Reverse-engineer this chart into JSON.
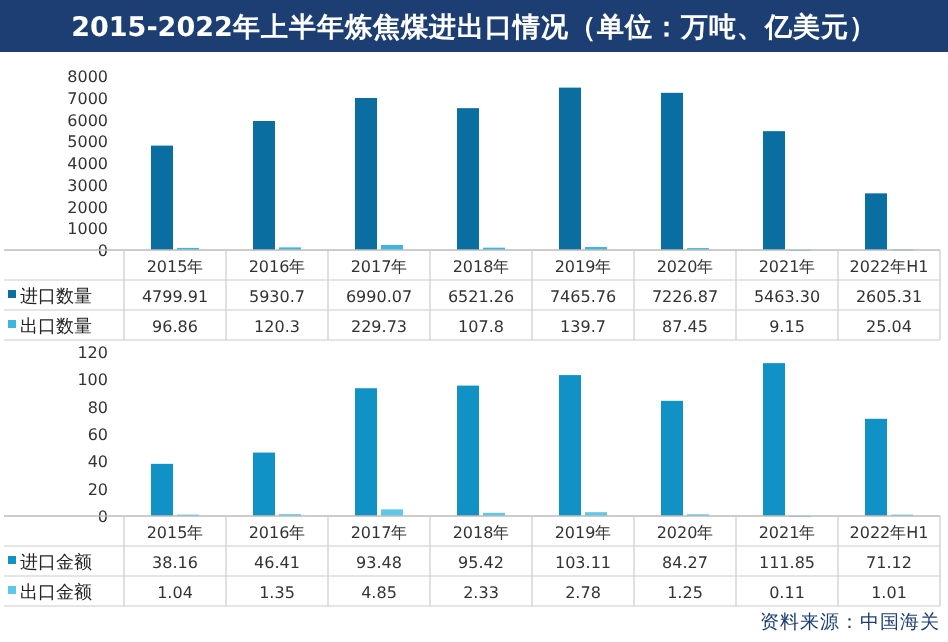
{
  "chart_data": [
    {
      "type": "bar",
      "title": "2015-2022年上半年炼焦煤进出口情况（单位：万吨、亿美元）",
      "categories": [
        "2015年",
        "2016年",
        "2017年",
        "2018年",
        "2019年",
        "2020年",
        "2021年",
        "2022年H1"
      ],
      "series": [
        {
          "name": "进口数量",
          "color": "#0a6fa0",
          "values": [
            4799.91,
            5930.7,
            6990.07,
            6521.26,
            7465.76,
            7226.87,
            5463.3,
            2605.31
          ],
          "value_labels": [
            "4799.91",
            "5930.7",
            "6990.07",
            "6521.26",
            "7465.76",
            "7226.87",
            "5463.30",
            "2605.31"
          ]
        },
        {
          "name": "出口数量",
          "color": "#3cb6e0",
          "values": [
            96.86,
            120.3,
            229.73,
            107.8,
            139.7,
            87.45,
            9.15,
            25.04
          ],
          "value_labels": [
            "96.86",
            "120.3",
            "229.73",
            "107.8",
            "139.7",
            "87.45",
            "9.15",
            "25.04"
          ]
        }
      ],
      "ylim": [
        0,
        8000
      ],
      "yticks": [
        0,
        1000,
        2000,
        3000,
        4000,
        5000,
        6000,
        7000,
        8000
      ],
      "legend": "bottom"
    },
    {
      "type": "bar",
      "categories": [
        "2015年",
        "2016年",
        "2017年",
        "2018年",
        "2019年",
        "2020年",
        "2021年",
        "2022年H1"
      ],
      "series": [
        {
          "name": "进口金额",
          "color": "#1192c6",
          "values": [
            38.16,
            46.41,
            93.48,
            95.42,
            103.11,
            84.27,
            111.85,
            71.12
          ],
          "value_labels": [
            "38.16",
            "46.41",
            "93.48",
            "95.42",
            "103.11",
            "84.27",
            "111.85",
            "71.12"
          ]
        },
        {
          "name": "出口金额",
          "color": "#5cc8ea",
          "values": [
            1.04,
            1.35,
            4.85,
            2.33,
            2.78,
            1.25,
            0.11,
            1.01
          ],
          "value_labels": [
            "1.04",
            "1.35",
            "4.85",
            "2.33",
            "2.78",
            "1.25",
            "0.11",
            "1.01"
          ]
        }
      ],
      "ylim": [
        0,
        120
      ],
      "yticks": [
        0,
        20,
        40,
        60,
        80,
        100,
        120
      ],
      "legend": "bottom",
      "annotations": [
        "资料来源：中国海关"
      ]
    }
  ]
}
